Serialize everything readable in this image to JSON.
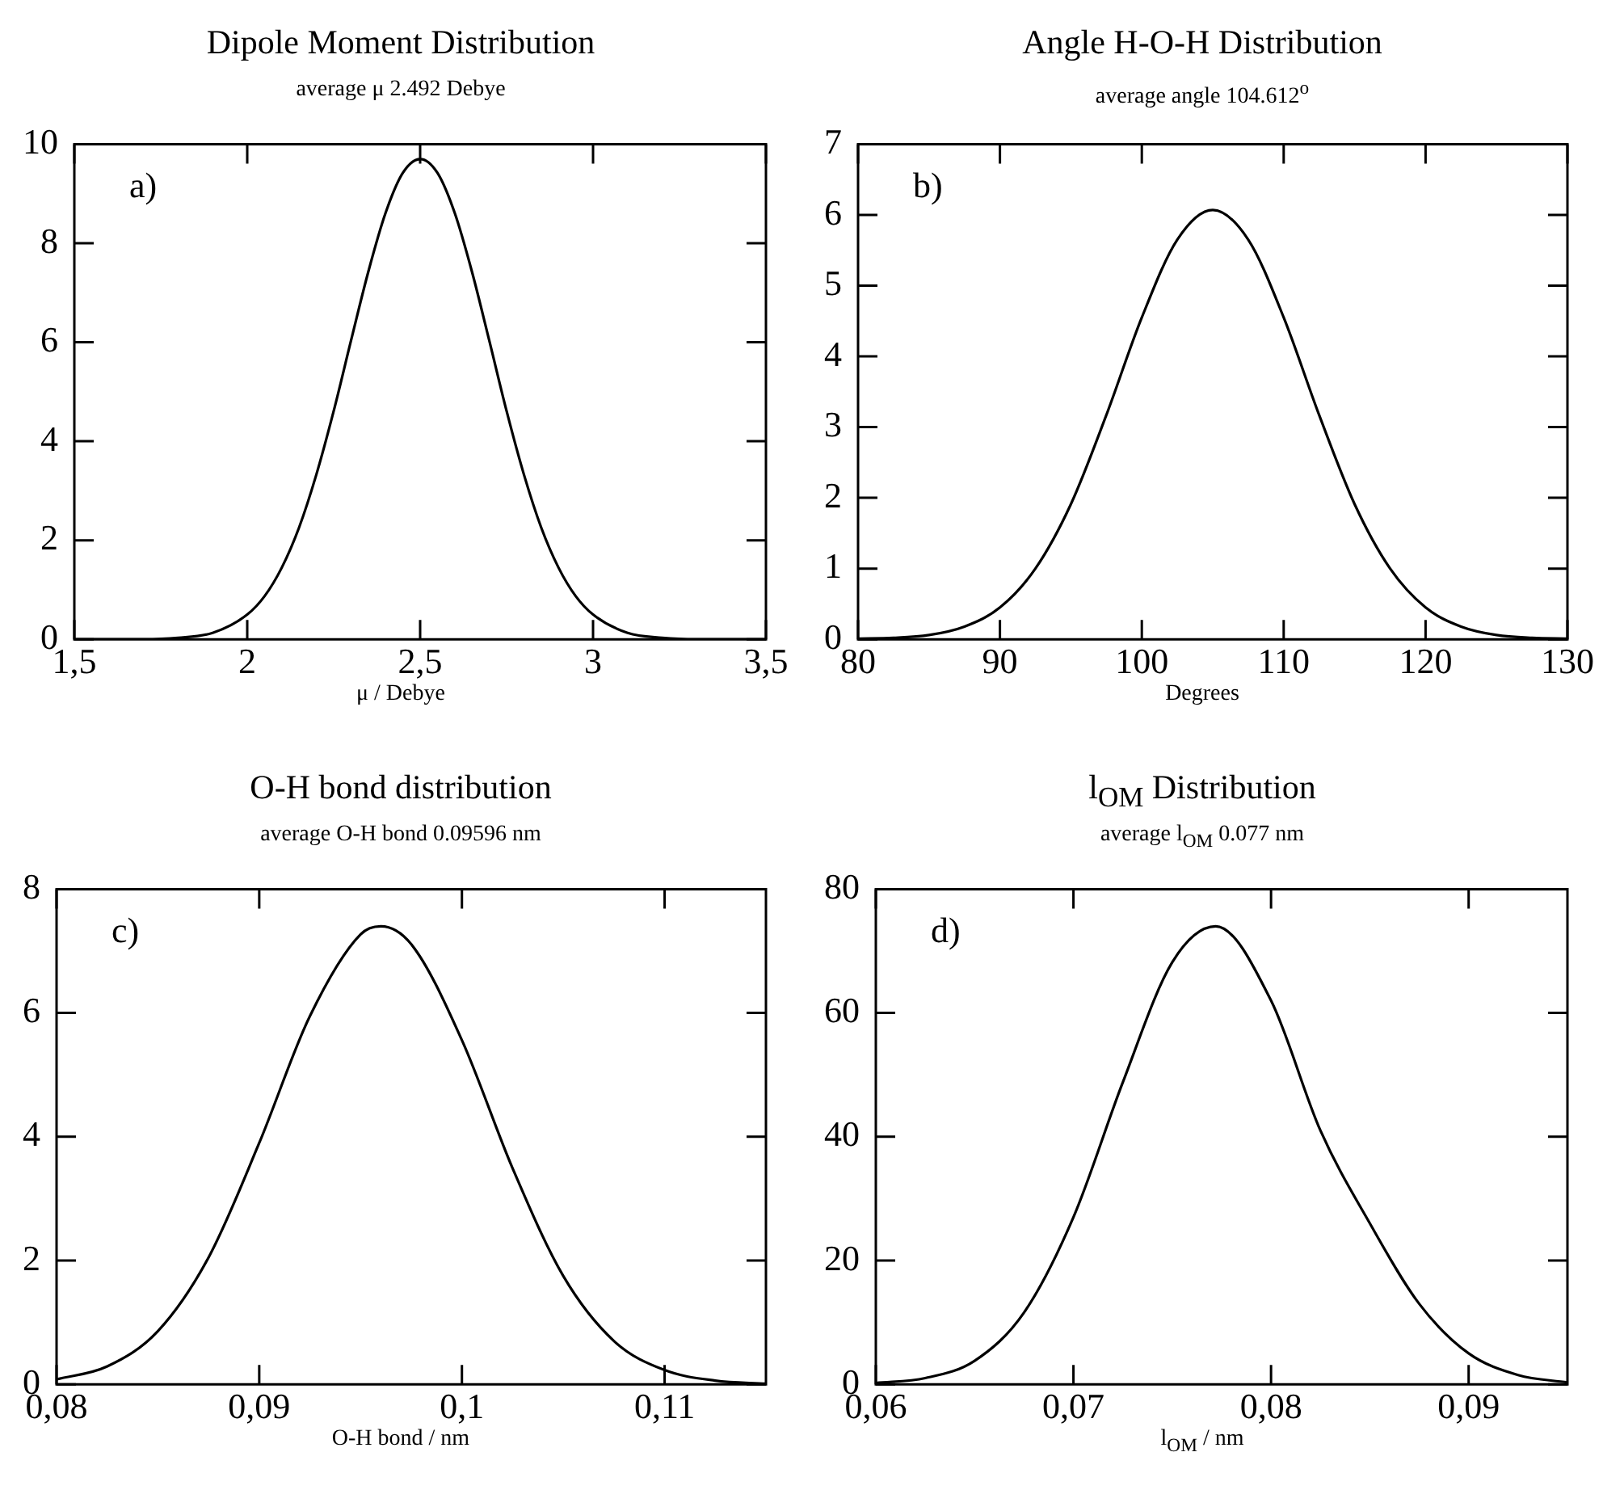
{
  "chart_data": [
    {
      "type": "line",
      "title": "Dipole Moment Distribution",
      "subtitle": "average  μ   2.492 Debye",
      "xlabel": "μ  / Debye",
      "annotations": [
        "a)"
      ],
      "legend": false,
      "grid": false,
      "marker": "none",
      "x": [
        1.5,
        1.7,
        1.8,
        1.9,
        2,
        2.05,
        2.1,
        2.15,
        2.2,
        2.25,
        2.3,
        2.35,
        2.4,
        2.45,
        2.5,
        2.55,
        2.6,
        2.65,
        2.7,
        2.75,
        2.8,
        2.85,
        2.9,
        2.95,
        3,
        3.1,
        3.2,
        3.3,
        3.5
      ],
      "series": [
        {
          "color": "#000000",
          "values": [
            0,
            0,
            0.03,
            0.13,
            0.5,
            0.87,
            1.45,
            2.26,
            3.33,
            4.61,
            6.03,
            7.42,
            8.61,
            9.42,
            9.7,
            9.42,
            8.61,
            7.42,
            6.03,
            4.61,
            3.33,
            2.26,
            1.45,
            0.87,
            0.5,
            0.13,
            0.03,
            0,
            0
          ]
        }
      ],
      "xlim": [
        1.5,
        3.5
      ],
      "ylim": [
        0,
        10
      ],
      "xticks": [
        {
          "value": 1.5,
          "label": "1,5"
        },
        2,
        {
          "value": 2.5,
          "label": "2,5"
        },
        3,
        {
          "value": 3.5,
          "label": "3,5"
        }
      ],
      "yticks": [
        0,
        2,
        4,
        6,
        8,
        10
      ]
    },
    {
      "type": "line",
      "title": "Angle H-O-H Distribution",
      "subtitle": "average angle 104.612$^{o}$",
      "xlabel": "Degrees",
      "annotations": [
        "b)"
      ],
      "legend": false,
      "grid": false,
      "marker": "none",
      "x": [
        80,
        82.5,
        85,
        87.5,
        90,
        92.5,
        95,
        97.5,
        100,
        102.5,
        105,
        107.5,
        110,
        112.5,
        115,
        117.5,
        120,
        122.5,
        125,
        127.5,
        130
      ],
      "series": [
        {
          "color": "#000000",
          "values": [
            0.01,
            0.02,
            0.06,
            0.18,
            0.45,
            1.0,
            1.91,
            3.17,
            4.55,
            5.65,
            6.07,
            5.65,
            4.55,
            3.17,
            1.91,
            1.0,
            0.45,
            0.18,
            0.06,
            0.02,
            0.01
          ]
        }
      ],
      "xlim": [
        80,
        130
      ],
      "ylim": [
        0,
        7
      ],
      "xticks": [
        80,
        90,
        100,
        110,
        120,
        130
      ],
      "yticks": [
        0,
        1,
        2,
        3,
        4,
        5,
        6,
        7
      ]
    },
    {
      "type": "line",
      "title": "O-H bond distribution",
      "subtitle": "average O-H bond  0.09596 nm",
      "xlabel": "O-H bond / nm",
      "annotations": [
        "c)"
      ],
      "legend": false,
      "grid": false,
      "marker": "none",
      "x": [
        0.08,
        0.0825,
        0.085,
        0.0875,
        0.09,
        0.0925,
        0.095,
        0.096,
        0.0975,
        0.1,
        0.1025,
        0.105,
        0.1075,
        0.11,
        0.1125,
        0.115
      ],
      "series": [
        {
          "color": "#000000",
          "values": [
            0.08,
            0.29,
            0.86,
            2.05,
            3.9,
            5.95,
            7.27,
            7.4,
            7.11,
            5.56,
            3.49,
            1.75,
            0.7,
            0.23,
            0.06,
            0.01
          ]
        }
      ],
      "xlim": [
        0.08,
        0.115
      ],
      "ylim": [
        0,
        8
      ],
      "xticks": [
        {
          "value": 0.08,
          "label": "0,08"
        },
        {
          "value": 0.09,
          "label": "0,09"
        },
        {
          "value": 0.1,
          "label": "0,1"
        },
        {
          "value": 0.11,
          "label": "0,11"
        }
      ],
      "yticks": [
        0,
        2,
        4,
        6,
        8
      ]
    },
    {
      "type": "line",
      "title": "l$_{OM}$ Distribution",
      "subtitle": "average l$_{OM}$ 0.077 nm",
      "xlabel": "l$_{OM}$ / nm",
      "annotations": [
        "d)"
      ],
      "legend": false,
      "grid": false,
      "marker": "none",
      "x": [
        0.06,
        0.0625,
        0.065,
        0.0675,
        0.07,
        0.0725,
        0.075,
        0.0772,
        0.08,
        0.0825,
        0.085,
        0.0875,
        0.09,
        0.0925,
        0.095
      ],
      "series": [
        {
          "color": "#000000",
          "values": [
            0.2,
            1,
            3.8,
            11.6,
            27,
            48.8,
            68.2,
            74,
            62,
            41,
            26,
            13,
            5,
            1.5,
            0.3
          ]
        }
      ],
      "xlim": [
        0.06,
        0.095
      ],
      "ylim": [
        0,
        80
      ],
      "xticks": [
        {
          "value": 0.06,
          "label": "0,06"
        },
        {
          "value": 0.07,
          "label": "0,07"
        },
        {
          "value": 0.08,
          "label": "0,08"
        },
        {
          "value": 0.09,
          "label": "0,09"
        }
      ],
      "yticks": [
        0,
        20,
        40,
        60,
        80
      ]
    }
  ]
}
